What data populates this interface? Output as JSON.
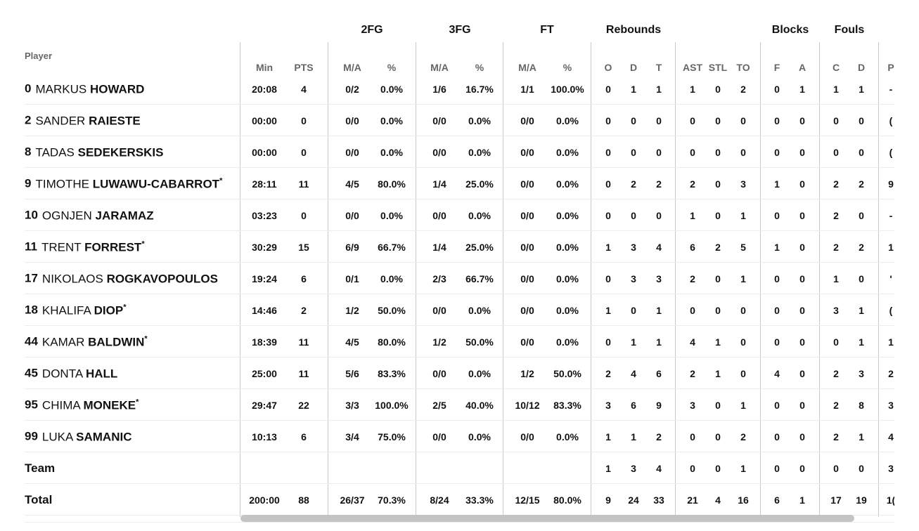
{
  "groups": {
    "fg2": "2FG",
    "fg3": "3FG",
    "ft": "FT",
    "rebounds": "Rebounds",
    "blocks": "Blocks",
    "fouls": "Fouls"
  },
  "columns": {
    "player": "Player",
    "min": "Min",
    "pts": "PTS",
    "fg2_ma": "M/A",
    "fg2_pct": "%",
    "fg3_ma": "M/A",
    "fg3_pct": "%",
    "ft_ma": "M/A",
    "ft_pct": "%",
    "reb_o": "O",
    "reb_d": "D",
    "reb_t": "T",
    "ast": "AST",
    "stl": "STL",
    "to": "TO",
    "blk_f": "F",
    "blk_a": "A",
    "foul_c": "C",
    "foul_d": "D",
    "pir_partial": "P"
  },
  "rows": [
    {
      "num": "0",
      "first": "MARKUS",
      "last": "HOWARD",
      "star": "",
      "min": "20:08",
      "pts": "4",
      "fg2_ma": "0/2",
      "fg2_pct": "0.0%",
      "fg3_ma": "1/6",
      "fg3_pct": "16.7%",
      "ft_ma": "1/1",
      "ft_pct": "100.0%",
      "o": "0",
      "d": "1",
      "t": "1",
      "ast": "1",
      "stl": "0",
      "to": "2",
      "bf": "0",
      "ba": "1",
      "fc": "1",
      "fd": "1",
      "pir": "-"
    },
    {
      "num": "2",
      "first": "SANDER",
      "last": "RAIESTE",
      "star": "",
      "min": "00:00",
      "pts": "0",
      "fg2_ma": "0/0",
      "fg2_pct": "0.0%",
      "fg3_ma": "0/0",
      "fg3_pct": "0.0%",
      "ft_ma": "0/0",
      "ft_pct": "0.0%",
      "o": "0",
      "d": "0",
      "t": "0",
      "ast": "0",
      "stl": "0",
      "to": "0",
      "bf": "0",
      "ba": "0",
      "fc": "0",
      "fd": "0",
      "pir": "("
    },
    {
      "num": "8",
      "first": "TADAS",
      "last": "SEDEKERSKIS",
      "star": "",
      "min": "00:00",
      "pts": "0",
      "fg2_ma": "0/0",
      "fg2_pct": "0.0%",
      "fg3_ma": "0/0",
      "fg3_pct": "0.0%",
      "ft_ma": "0/0",
      "ft_pct": "0.0%",
      "o": "0",
      "d": "0",
      "t": "0",
      "ast": "0",
      "stl": "0",
      "to": "0",
      "bf": "0",
      "ba": "0",
      "fc": "0",
      "fd": "0",
      "pir": "("
    },
    {
      "num": "9",
      "first": "TIMOTHE",
      "last": "LUWAWU-CABARROT",
      "star": "*",
      "min": "28:11",
      "pts": "11",
      "fg2_ma": "4/5",
      "fg2_pct": "80.0%",
      "fg3_ma": "1/4",
      "fg3_pct": "25.0%",
      "ft_ma": "0/0",
      "ft_pct": "0.0%",
      "o": "0",
      "d": "2",
      "t": "2",
      "ast": "2",
      "stl": "0",
      "to": "3",
      "bf": "1",
      "ba": "0",
      "fc": "2",
      "fd": "2",
      "pir": "9"
    },
    {
      "num": "10",
      "first": "OGNJEN",
      "last": "JARAMAZ",
      "star": "",
      "min": "03:23",
      "pts": "0",
      "fg2_ma": "0/0",
      "fg2_pct": "0.0%",
      "fg3_ma": "0/0",
      "fg3_pct": "0.0%",
      "ft_ma": "0/0",
      "ft_pct": "0.0%",
      "o": "0",
      "d": "0",
      "t": "0",
      "ast": "1",
      "stl": "0",
      "to": "1",
      "bf": "0",
      "ba": "0",
      "fc": "2",
      "fd": "0",
      "pir": "-"
    },
    {
      "num": "11",
      "first": "TRENT",
      "last": "FORREST",
      "star": "*",
      "min": "30:29",
      "pts": "15",
      "fg2_ma": "6/9",
      "fg2_pct": "66.7%",
      "fg3_ma": "1/4",
      "fg3_pct": "25.0%",
      "ft_ma": "0/0",
      "ft_pct": "0.0%",
      "o": "1",
      "d": "3",
      "t": "4",
      "ast": "6",
      "stl": "2",
      "to": "5",
      "bf": "1",
      "ba": "0",
      "fc": "2",
      "fd": "2",
      "pir": "1"
    },
    {
      "num": "17",
      "first": "NIKOLAOS",
      "last": "ROGKAVOPOULOS",
      "star": "",
      "min": "19:24",
      "pts": "6",
      "fg2_ma": "0/1",
      "fg2_pct": "0.0%",
      "fg3_ma": "2/3",
      "fg3_pct": "66.7%",
      "ft_ma": "0/0",
      "ft_pct": "0.0%",
      "o": "0",
      "d": "3",
      "t": "3",
      "ast": "2",
      "stl": "0",
      "to": "1",
      "bf": "0",
      "ba": "0",
      "fc": "1",
      "fd": "0",
      "pir": "'"
    },
    {
      "num": "18",
      "first": "KHALIFA",
      "last": "DIOP",
      "star": "*",
      "min": "14:46",
      "pts": "2",
      "fg2_ma": "1/2",
      "fg2_pct": "50.0%",
      "fg3_ma": "0/0",
      "fg3_pct": "0.0%",
      "ft_ma": "0/0",
      "ft_pct": "0.0%",
      "o": "1",
      "d": "0",
      "t": "1",
      "ast": "0",
      "stl": "0",
      "to": "0",
      "bf": "0",
      "ba": "0",
      "fc": "3",
      "fd": "1",
      "pir": "("
    },
    {
      "num": "44",
      "first": "KAMAR",
      "last": "BALDWIN",
      "star": "*",
      "min": "18:39",
      "pts": "11",
      "fg2_ma": "4/5",
      "fg2_pct": "80.0%",
      "fg3_ma": "1/2",
      "fg3_pct": "50.0%",
      "ft_ma": "0/0",
      "ft_pct": "0.0%",
      "o": "0",
      "d": "1",
      "t": "1",
      "ast": "4",
      "stl": "1",
      "to": "0",
      "bf": "0",
      "ba": "0",
      "fc": "0",
      "fd": "1",
      "pir": "1"
    },
    {
      "num": "45",
      "first": "DONTA",
      "last": "HALL",
      "star": "",
      "min": "25:00",
      "pts": "11",
      "fg2_ma": "5/6",
      "fg2_pct": "83.3%",
      "fg3_ma": "0/0",
      "fg3_pct": "0.0%",
      "ft_ma": "1/2",
      "ft_pct": "50.0%",
      "o": "2",
      "d": "4",
      "t": "6",
      "ast": "2",
      "stl": "1",
      "to": "0",
      "bf": "4",
      "ba": "0",
      "fc": "2",
      "fd": "3",
      "pir": "2"
    },
    {
      "num": "95",
      "first": "CHIMA",
      "last": "MONEKE",
      "star": "*",
      "min": "29:47",
      "pts": "22",
      "fg2_ma": "3/3",
      "fg2_pct": "100.0%",
      "fg3_ma": "2/5",
      "fg3_pct": "40.0%",
      "ft_ma": "10/12",
      "ft_pct": "83.3%",
      "o": "3",
      "d": "6",
      "t": "9",
      "ast": "3",
      "stl": "0",
      "to": "1",
      "bf": "0",
      "ba": "0",
      "fc": "2",
      "fd": "8",
      "pir": "3"
    },
    {
      "num": "99",
      "first": "LUKA",
      "last": "SAMANIC",
      "star": "",
      "min": "10:13",
      "pts": "6",
      "fg2_ma": "3/4",
      "fg2_pct": "75.0%",
      "fg3_ma": "0/0",
      "fg3_pct": "0.0%",
      "ft_ma": "0/0",
      "ft_pct": "0.0%",
      "o": "1",
      "d": "1",
      "t": "2",
      "ast": "0",
      "stl": "0",
      "to": "2",
      "bf": "0",
      "ba": "0",
      "fc": "2",
      "fd": "1",
      "pir": "4"
    }
  ],
  "team": {
    "label": "Team",
    "o": "1",
    "d": "3",
    "t": "4",
    "ast": "0",
    "stl": "0",
    "to": "1",
    "bf": "0",
    "ba": "0",
    "fc": "0",
    "fd": "0",
    "pir": "3"
  },
  "total": {
    "label": "Total",
    "min": "200:00",
    "pts": "88",
    "fg2_ma": "26/37",
    "fg2_pct": "70.3%",
    "fg3_ma": "8/24",
    "fg3_pct": "33.3%",
    "ft_ma": "12/15",
    "ft_pct": "80.0%",
    "o": "9",
    "d": "24",
    "t": "33",
    "ast": "21",
    "stl": "4",
    "to": "16",
    "bf": "6",
    "ba": "1",
    "fc": "17",
    "fd": "19",
    "pir": "1("
  }
}
